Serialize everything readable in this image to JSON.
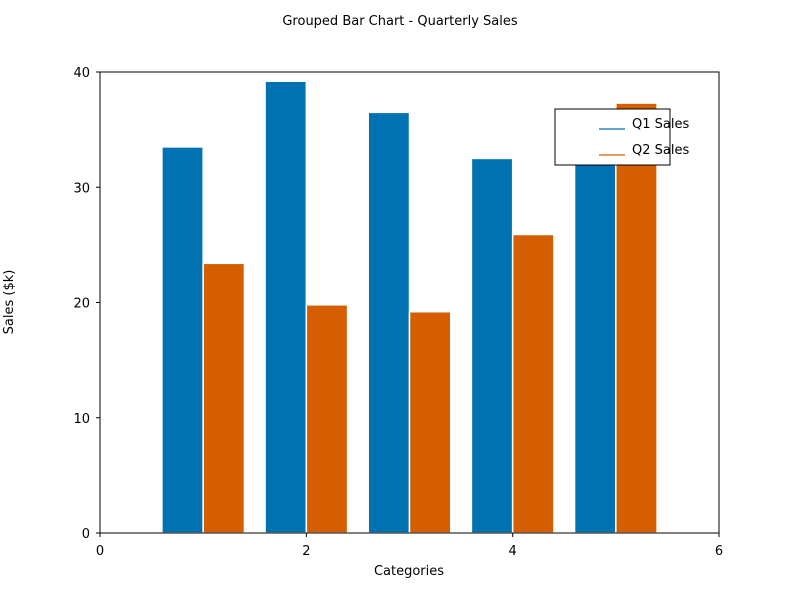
{
  "chart_data": {
    "type": "bar",
    "title": "Grouped Bar Chart - Quarterly Sales",
    "xlabel": "Categories",
    "ylabel": "Sales ($k)",
    "xlim": [
      0,
      6
    ],
    "ylim": [
      0,
      40
    ],
    "xticks": [
      0,
      2,
      4,
      6
    ],
    "yticks": [
      0,
      10,
      20,
      30,
      40
    ],
    "x": [
      1,
      2,
      3,
      4,
      5
    ],
    "bar_width": 0.4,
    "grid": false,
    "legend_position": "upper right",
    "series": [
      {
        "name": "Q1 Sales",
        "color": "#0072B2",
        "values": [
          33.5,
          39.2,
          36.5,
          32.5,
          32.0
        ]
      },
      {
        "name": "Q2 Sales",
        "color": "#D55E00",
        "values": [
          23.4,
          19.8,
          19.2,
          25.9,
          37.3
        ]
      }
    ]
  }
}
